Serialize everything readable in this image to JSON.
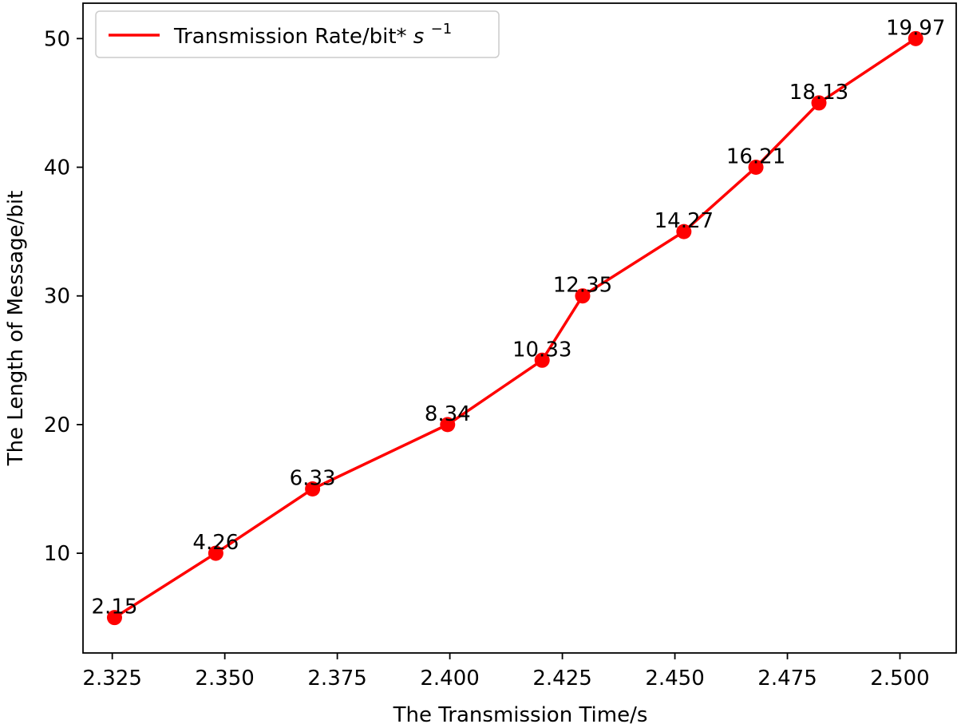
{
  "chart_data": {
    "type": "line",
    "xlabel": "The Transmission Time/s",
    "ylabel": "The Length of Message/bit",
    "xlim": [
      2.3185,
      2.5125
    ],
    "ylim": [
      2.25,
      52.75
    ],
    "xticks": [
      2.325,
      2.35,
      2.375,
      2.4,
      2.425,
      2.45,
      2.475,
      2.5
    ],
    "xtick_labels": [
      "2.325",
      "2.350",
      "2.375",
      "2.400",
      "2.425",
      "2.450",
      "2.475",
      "2.500"
    ],
    "yticks": [
      10,
      20,
      30,
      40,
      50
    ],
    "ytick_labels": [
      "10",
      "20",
      "30",
      "40",
      "50"
    ],
    "grid": false,
    "legend_position": "top-left",
    "series": [
      {
        "name_plain": "Transmission Rate/bit*",
        "name_math_base": "s",
        "name_math_sup": "−1",
        "color": "#ff0000",
        "marker": "circle",
        "x": [
          2.3255,
          2.348,
          2.3695,
          2.3995,
          2.4205,
          2.4295,
          2.452,
          2.468,
          2.482,
          2.5035
        ],
        "y": [
          5,
          10,
          15,
          20,
          25,
          30,
          35,
          40,
          45,
          50
        ],
        "labels": [
          "2.15",
          "4.26",
          "6.33",
          "8.34",
          "10.33",
          "12.35",
          "14.27",
          "16.21",
          "18.13",
          "19.97"
        ]
      }
    ]
  }
}
